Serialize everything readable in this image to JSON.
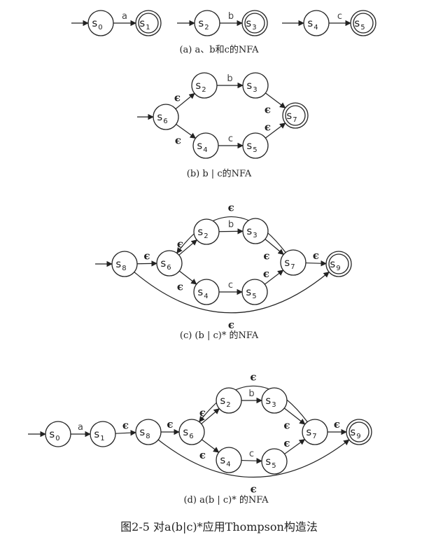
{
  "captions": {
    "a": "(a) a、b和c的NFA",
    "b": "(b) b | c的NFA",
    "c": "(c) (b | c)* 的NFA",
    "d": "(d) a(b | c)* 的NFA",
    "figure": "图2-5   对a(b|c)*应用Thompson构造法"
  },
  "symbols": {
    "a": "a",
    "b": "b",
    "c": "c",
    "epsilon": "ϵ",
    "state_prefix": "s"
  },
  "diagrams": [
    {
      "id": "a",
      "states": [
        {
          "id": "s0",
          "sub": "0",
          "accepting": false
        },
        {
          "id": "s1",
          "sub": "1",
          "accepting": true
        },
        {
          "id": "s2",
          "sub": "2",
          "accepting": false
        },
        {
          "id": "s3",
          "sub": "3",
          "accepting": true
        },
        {
          "id": "s4",
          "sub": "4",
          "accepting": false
        },
        {
          "id": "s5",
          "sub": "5",
          "accepting": true
        }
      ],
      "transitions": [
        {
          "from": "s0",
          "to": "s1",
          "label": "a"
        },
        {
          "from": "s2",
          "to": "s3",
          "label": "b"
        },
        {
          "from": "s4",
          "to": "s5",
          "label": "c"
        }
      ]
    },
    {
      "id": "b",
      "states": [
        {
          "id": "s6",
          "sub": "6",
          "accepting": false
        },
        {
          "id": "s2",
          "sub": "2",
          "accepting": false
        },
        {
          "id": "s3",
          "sub": "3",
          "accepting": false
        },
        {
          "id": "s4",
          "sub": "4",
          "accepting": false
        },
        {
          "id": "s5",
          "sub": "5",
          "accepting": false
        },
        {
          "id": "s7",
          "sub": "7",
          "accepting": true
        }
      ],
      "transitions": [
        {
          "from": "s6",
          "to": "s2",
          "label": "ϵ"
        },
        {
          "from": "s6",
          "to": "s4",
          "label": "ϵ"
        },
        {
          "from": "s2",
          "to": "s3",
          "label": "b"
        },
        {
          "from": "s4",
          "to": "s5",
          "label": "c"
        },
        {
          "from": "s3",
          "to": "s7",
          "label": "ϵ"
        },
        {
          "from": "s5",
          "to": "s7",
          "label": "ϵ"
        }
      ]
    },
    {
      "id": "c",
      "states": [
        {
          "id": "s8",
          "sub": "8",
          "accepting": false
        },
        {
          "id": "s6",
          "sub": "6",
          "accepting": false
        },
        {
          "id": "s2",
          "sub": "2",
          "accepting": false
        },
        {
          "id": "s3",
          "sub": "3",
          "accepting": false
        },
        {
          "id": "s4",
          "sub": "4",
          "accepting": false
        },
        {
          "id": "s5",
          "sub": "5",
          "accepting": false
        },
        {
          "id": "s7",
          "sub": "7",
          "accepting": false
        },
        {
          "id": "s9",
          "sub": "9",
          "accepting": true
        }
      ],
      "transitions": [
        {
          "from": "s8",
          "to": "s6",
          "label": "ϵ"
        },
        {
          "from": "s6",
          "to": "s2",
          "label": "ϵ"
        },
        {
          "from": "s6",
          "to": "s4",
          "label": "ϵ"
        },
        {
          "from": "s2",
          "to": "s3",
          "label": "b"
        },
        {
          "from": "s4",
          "to": "s5",
          "label": "c"
        },
        {
          "from": "s3",
          "to": "s7",
          "label": "ϵ"
        },
        {
          "from": "s5",
          "to": "s7",
          "label": "ϵ"
        },
        {
          "from": "s7",
          "to": "s9",
          "label": "ϵ"
        },
        {
          "from": "s7",
          "to": "s6",
          "label": "ϵ"
        },
        {
          "from": "s8",
          "to": "s9",
          "label": "ϵ"
        }
      ]
    },
    {
      "id": "d",
      "states": [
        {
          "id": "s0",
          "sub": "0",
          "accepting": false
        },
        {
          "id": "s1",
          "sub": "1",
          "accepting": false
        },
        {
          "id": "s8",
          "sub": "8",
          "accepting": false
        },
        {
          "id": "s6",
          "sub": "6",
          "accepting": false
        },
        {
          "id": "s2",
          "sub": "2",
          "accepting": false
        },
        {
          "id": "s3",
          "sub": "3",
          "accepting": false
        },
        {
          "id": "s4",
          "sub": "4",
          "accepting": false
        },
        {
          "id": "s5",
          "sub": "5",
          "accepting": false
        },
        {
          "id": "s7",
          "sub": "7",
          "accepting": false
        },
        {
          "id": "s9",
          "sub": "9",
          "accepting": true
        }
      ],
      "transitions": [
        {
          "from": "s0",
          "to": "s1",
          "label": "a"
        },
        {
          "from": "s1",
          "to": "s8",
          "label": "ϵ"
        },
        {
          "from": "s8",
          "to": "s6",
          "label": "ϵ"
        },
        {
          "from": "s6",
          "to": "s2",
          "label": "ϵ"
        },
        {
          "from": "s6",
          "to": "s4",
          "label": "ϵ"
        },
        {
          "from": "s2",
          "to": "s3",
          "label": "b"
        },
        {
          "from": "s4",
          "to": "s5",
          "label": "c"
        },
        {
          "from": "s3",
          "to": "s7",
          "label": "ϵ"
        },
        {
          "from": "s5",
          "to": "s7",
          "label": "ϵ"
        },
        {
          "from": "s7",
          "to": "s9",
          "label": "ϵ"
        },
        {
          "from": "s7",
          "to": "s6",
          "label": "ϵ"
        },
        {
          "from": "s8",
          "to": "s9",
          "label": "ϵ"
        }
      ]
    }
  ]
}
